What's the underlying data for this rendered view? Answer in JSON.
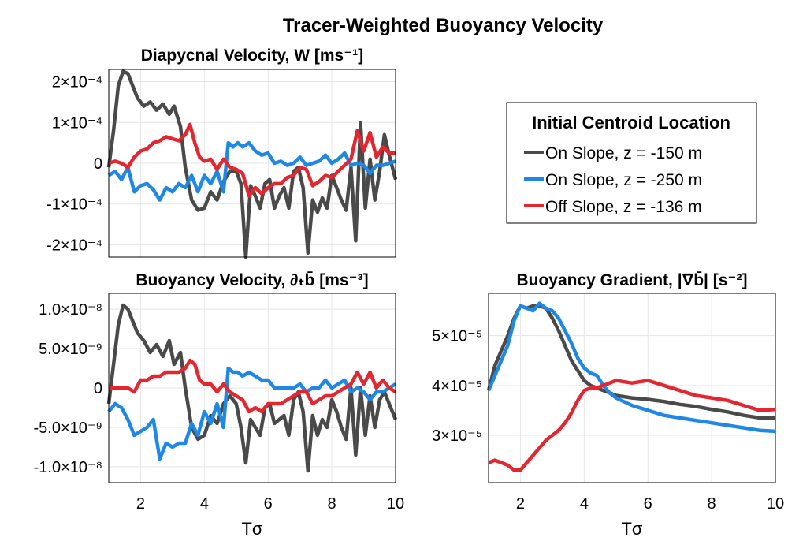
{
  "figure": {
    "title": "Tracer-Weighted Buoyancy Velocity"
  },
  "legend": {
    "title": "Initial Centroid Location",
    "entries": [
      {
        "label": "On Slope, z = -150 m",
        "color": "#4a4a4a"
      },
      {
        "label": "On Slope, z = -250 m",
        "color": "#1f88e5"
      },
      {
        "label": "Off Slope, z = -136 m",
        "color": "#e3262f"
      }
    ]
  },
  "chart_data": [
    {
      "type": "line",
      "title": "Diapycnal Velocity, W [ms⁻¹]",
      "xlabel": "",
      "ylabel": "",
      "xlim": [
        1,
        10
      ],
      "ylim": [
        -0.00023,
        0.00023
      ],
      "xticks": [],
      "yticks": [
        {
          "value": 0.0002,
          "label": "2×10⁻⁴"
        },
        {
          "value": 0.0001,
          "label": "1×10⁻⁴"
        },
        {
          "value": 0,
          "label": "0"
        },
        {
          "value": -0.0001,
          "label": "-1×10⁻⁴"
        },
        {
          "value": -0.0002,
          "label": "-2×10⁻⁴"
        }
      ],
      "grid": true,
      "series": [
        {
          "name": "On Slope, z = -150 m",
          "color": "#4a4a4a",
          "x": [
            1.0,
            1.15,
            1.3,
            1.45,
            1.6,
            1.75,
            1.9,
            2.1,
            2.3,
            2.5,
            2.7,
            2.9,
            3.05,
            3.25,
            3.4,
            3.6,
            3.8,
            4.0,
            4.2,
            4.4,
            4.6,
            4.8,
            5.0,
            5.15,
            5.3,
            5.45,
            5.6,
            5.75,
            5.9,
            6.05,
            6.2,
            6.35,
            6.5,
            6.65,
            6.8,
            6.95,
            7.1,
            7.25,
            7.4,
            7.55,
            7.7,
            7.85,
            8.0,
            8.15,
            8.3,
            8.45,
            8.6,
            8.75,
            8.9,
            9.05,
            9.2,
            9.35,
            9.5,
            9.65,
            9.8,
            10.0
          ],
          "y": [
            -1e-05,
            8e-05,
            0.00019,
            0.000225,
            0.00022,
            0.00019,
            0.00016,
            0.00014,
            0.00015,
            0.00013,
            0.000145,
            0.00012,
            0.00014,
            9e-05,
            -1e-05,
            -9e-05,
            -0.000115,
            -0.00011,
            -7e-05,
            -9e-05,
            -4.5e-05,
            -2e-05,
            -2e-05,
            -5e-05,
            -0.00023,
            -5.5e-05,
            -8e-05,
            -0.00011,
            -5e-05,
            -4e-05,
            -0.00011,
            -8e-05,
            -6e-05,
            -0.00011,
            -2e-05,
            -1e-05,
            -6e-05,
            -0.00022,
            -9e-05,
            -0.00012,
            -8.5e-05,
            -0.00011,
            -3e-05,
            -6e-05,
            -9e-05,
            -0.000115,
            -1e-05,
            -0.00019,
            0.0001,
            -0.00011,
            1e-05,
            -9e-05,
            -2e-05,
            7e-05,
            2e-05,
            -4e-05
          ]
        },
        {
          "name": "On Slope, z = -250 m",
          "color": "#1f88e5",
          "x": [
            1.0,
            1.2,
            1.4,
            1.6,
            1.8,
            2.0,
            2.2,
            2.4,
            2.6,
            2.8,
            3.0,
            3.2,
            3.4,
            3.6,
            3.8,
            4.0,
            4.2,
            4.4,
            4.6,
            4.75,
            4.9,
            5.05,
            5.2,
            5.4,
            5.6,
            5.8,
            6.0,
            6.2,
            6.4,
            6.6,
            6.8,
            7.0,
            7.2,
            7.4,
            7.6,
            7.8,
            8.0,
            8.2,
            8.4,
            8.6,
            8.8,
            9.0,
            9.2,
            9.4,
            9.6,
            9.8,
            10.0
          ],
          "y": [
            -3e-05,
            -2e-05,
            -4e-05,
            -1e-05,
            -7e-05,
            -5.5e-05,
            -5e-05,
            -6.5e-05,
            -9e-05,
            -6e-05,
            -7e-05,
            -5e-05,
            -6e-05,
            -3e-05,
            -7e-05,
            -3e-05,
            -5e-05,
            -2e-05,
            -7e-05,
            5e-05,
            4e-05,
            5e-05,
            4e-05,
            5e-05,
            3e-05,
            2e-05,
            2.5e-05,
            0.0,
            5e-06,
            -5e-06,
            0.0,
            1.5e-05,
            -5e-06,
            0.0,
            5e-06,
            2e-05,
            0.0,
            1e-05,
            2.5e-05,
            -5e-06,
            0.0,
            -5e-06,
            -2.5e-05,
            -5e-06,
            -5e-06,
            0.0,
            5e-06
          ]
        },
        {
          "name": "Off Slope, z = -136 m",
          "color": "#e3262f",
          "x": [
            1.0,
            1.2,
            1.4,
            1.6,
            1.8,
            2.0,
            2.2,
            2.4,
            2.6,
            2.8,
            3.0,
            3.2,
            3.4,
            3.55,
            3.7,
            3.85,
            4.0,
            4.2,
            4.4,
            4.6,
            4.8,
            5.0,
            5.2,
            5.4,
            5.6,
            5.8,
            6.0,
            6.2,
            6.4,
            6.6,
            6.8,
            7.0,
            7.2,
            7.4,
            7.6,
            7.8,
            8.0,
            8.2,
            8.4,
            8.6,
            8.8,
            9.0,
            9.2,
            9.4,
            9.6,
            9.8,
            10.0
          ],
          "y": [
            0.0,
            5e-06,
            0.0,
            -1e-05,
            1.5e-05,
            3e-05,
            3.5e-05,
            5e-05,
            5.5e-05,
            6.5e-05,
            6e-05,
            5.5e-05,
            7e-05,
            9.5e-05,
            5e-05,
            1.5e-05,
            5e-06,
            1e-05,
            -1.5e-05,
            1e-05,
            -1e-05,
            -1.5e-05,
            -2.5e-05,
            -8e-05,
            -6e-05,
            -7.5e-05,
            -6e-05,
            -5e-05,
            -5e-05,
            -3.5e-05,
            -3e-05,
            -1e-05,
            -1.5e-05,
            -5.5e-05,
            -4.5e-05,
            -3e-05,
            -3.5e-05,
            -2e-05,
            -5e-06,
            1e-05,
            8e-05,
            3e-05,
            7.5e-05,
            1.5e-05,
            4e-05,
            2.5e-05,
            2.5e-05
          ]
        }
      ]
    },
    {
      "type": "line",
      "title": "Buoyancy Velocity, ∂ₜb̄ [ms⁻³]",
      "xlabel": "Tσ",
      "ylabel": "",
      "xlim": [
        1,
        10
      ],
      "ylim": [
        -1.2e-08,
        1.2e-08
      ],
      "xticks": [
        {
          "value": 2,
          "label": "2"
        },
        {
          "value": 4,
          "label": "4"
        },
        {
          "value": 6,
          "label": "6"
        },
        {
          "value": 8,
          "label": "8"
        },
        {
          "value": 10,
          "label": "10"
        }
      ],
      "yticks": [
        {
          "value": 1e-08,
          "label": "1.0×10⁻⁸"
        },
        {
          "value": 5e-09,
          "label": "5.0×10⁻⁹"
        },
        {
          "value": 0,
          "label": "0"
        },
        {
          "value": -5e-09,
          "label": "-5.0×10⁻⁹"
        },
        {
          "value": -1e-08,
          "label": "-1.0×10⁻⁸"
        }
      ],
      "grid": true,
      "series": [
        {
          "name": "On Slope, z = -150 m",
          "color": "#4a4a4a",
          "x": [
            1.0,
            1.15,
            1.3,
            1.45,
            1.6,
            1.75,
            1.9,
            2.1,
            2.3,
            2.5,
            2.7,
            2.9,
            3.05,
            3.25,
            3.4,
            3.6,
            3.8,
            4.0,
            4.2,
            4.4,
            4.6,
            4.8,
            5.0,
            5.15,
            5.3,
            5.45,
            5.6,
            5.75,
            5.9,
            6.05,
            6.2,
            6.35,
            6.5,
            6.65,
            6.8,
            6.95,
            7.1,
            7.25,
            7.4,
            7.55,
            7.7,
            7.85,
            8.0,
            8.15,
            8.3,
            8.45,
            8.6,
            8.75,
            8.9,
            9.05,
            9.2,
            9.35,
            9.5,
            9.65,
            9.8,
            10.0
          ],
          "y": [
            -2e-09,
            3e-09,
            8e-09,
            1.05e-08,
            1e-08,
            8.5e-09,
            7e-09,
            6e-09,
            4.5e-09,
            5.5e-09,
            4e-09,
            6e-09,
            3e-09,
            4.5e-09,
            0.0,
            -5e-09,
            -6.5e-09,
            -6e-09,
            -3.5e-09,
            -4.5e-09,
            -2e-09,
            -1e-09,
            -2e-09,
            -5e-09,
            -9.5e-09,
            -4e-09,
            -5e-09,
            -6e-09,
            -2.5e-09,
            -2e-09,
            -4.5e-09,
            -4e-09,
            -3.5e-09,
            -6e-09,
            -1.5e-09,
            -5e-10,
            -3e-09,
            -1.05e-08,
            -3.5e-09,
            -6e-09,
            -4e-09,
            -5e-09,
            -1.5e-09,
            -3e-09,
            -5e-09,
            -6.5e-09,
            0.0,
            -8.5e-09,
            0.0,
            -6e-09,
            -1e-09,
            -5e-09,
            -1.5e-09,
            -5e-10,
            -2e-09,
            -4e-09
          ]
        },
        {
          "name": "On Slope, z = -250 m",
          "color": "#1f88e5",
          "x": [
            1.0,
            1.2,
            1.4,
            1.6,
            1.8,
            2.0,
            2.2,
            2.4,
            2.6,
            2.8,
            3.0,
            3.2,
            3.4,
            3.6,
            3.8,
            4.0,
            4.2,
            4.4,
            4.6,
            4.75,
            4.9,
            5.05,
            5.2,
            5.4,
            5.6,
            5.8,
            6.0,
            6.2,
            6.4,
            6.6,
            6.8,
            7.0,
            7.2,
            7.4,
            7.6,
            7.8,
            8.0,
            8.2,
            8.4,
            8.6,
            8.8,
            9.0,
            9.2,
            9.4,
            9.6,
            9.8,
            10.0
          ],
          "y": [
            -3e-09,
            -2e-09,
            -2.5e-09,
            -4e-09,
            -6e-09,
            -5.5e-09,
            -5e-09,
            -4e-09,
            -9e-09,
            -7e-09,
            -7.5e-09,
            -7e-09,
            -7e-09,
            -4.5e-09,
            -6e-09,
            -3e-09,
            -4.5e-09,
            -2e-09,
            -5e-09,
            2.5e-09,
            2e-09,
            2e-09,
            1.5e-09,
            2e-09,
            1.5e-09,
            1e-09,
            1e-09,
            0.0,
            0.0,
            0.0,
            0.0,
            5e-10,
            -5e-10,
            0.0,
            0.0,
            1e-09,
            0.0,
            5e-10,
            1e-09,
            -5e-10,
            0.0,
            -5e-10,
            -1.5e-09,
            -5e-10,
            -5e-10,
            0.0,
            5e-10
          ]
        },
        {
          "name": "Off Slope, z = -136 m",
          "color": "#e3262f",
          "x": [
            1.0,
            1.2,
            1.4,
            1.6,
            1.8,
            2.0,
            2.2,
            2.4,
            2.6,
            2.8,
            3.0,
            3.2,
            3.4,
            3.55,
            3.7,
            3.85,
            4.0,
            4.2,
            4.4,
            4.6,
            4.8,
            5.0,
            5.2,
            5.4,
            5.6,
            5.8,
            6.0,
            6.2,
            6.4,
            6.6,
            6.8,
            7.0,
            7.2,
            7.4,
            7.6,
            7.8,
            8.0,
            8.2,
            8.4,
            8.6,
            8.8,
            9.0,
            9.2,
            9.4,
            9.6,
            9.8,
            10.0
          ],
          "y": [
            0.0,
            0.0,
            0.0,
            0.0,
            -5e-10,
            1e-09,
            1e-09,
            1.5e-09,
            1.5e-09,
            2e-09,
            2e-09,
            2e-09,
            2.5e-09,
            3.5e-09,
            3e-09,
            1e-09,
            5e-10,
            5e-10,
            -5e-10,
            5e-10,
            -5e-10,
            -1e-09,
            -1.5e-09,
            -3e-09,
            -2.5e-09,
            -3e-09,
            -2e-09,
            -2e-09,
            -2e-09,
            -1.5e-09,
            -1e-09,
            -5e-10,
            -5e-10,
            -2e-09,
            -1.5e-09,
            -1e-09,
            -1e-09,
            -5e-10,
            0.0,
            5e-10,
            2e-09,
            5e-10,
            2e-09,
            0.0,
            1e-09,
            0.0,
            -5e-10
          ]
        }
      ]
    },
    {
      "type": "line",
      "title": "Buoyancy Gradient, |∇b̄| [s⁻²]",
      "xlabel": "Tσ",
      "ylabel": "",
      "xlim": [
        1,
        10
      ],
      "ylim": [
        2.05e-05,
        5.85e-05
      ],
      "xticks": [
        {
          "value": 2,
          "label": "2"
        },
        {
          "value": 4,
          "label": "4"
        },
        {
          "value": 6,
          "label": "6"
        },
        {
          "value": 8,
          "label": "8"
        },
        {
          "value": 10,
          "label": "10"
        }
      ],
      "yticks": [
        {
          "value": 5e-05,
          "label": "5×10⁻⁵"
        },
        {
          "value": 4e-05,
          "label": "4×10⁻⁵"
        },
        {
          "value": 3e-05,
          "label": "3×10⁻⁵"
        }
      ],
      "grid": true,
      "series": [
        {
          "name": "On Slope, z = -150 m",
          "color": "#4a4a4a",
          "x": [
            1.0,
            1.2,
            1.4,
            1.6,
            1.8,
            2.0,
            2.2,
            2.4,
            2.6,
            2.8,
            3.0,
            3.2,
            3.4,
            3.6,
            3.8,
            4.0,
            4.2,
            4.4,
            4.6,
            4.8,
            5.0,
            5.5,
            6.0,
            6.5,
            7.0,
            7.5,
            8.0,
            8.5,
            9.0,
            9.5,
            10.0
          ],
          "y": [
            3.9e-05,
            4.4e-05,
            4.7e-05,
            5e-05,
            5.35e-05,
            5.6e-05,
            5.55e-05,
            5.6e-05,
            5.6e-05,
            5.55e-05,
            5.35e-05,
            5.1e-05,
            4.8e-05,
            4.5e-05,
            4.3e-05,
            4.1e-05,
            4e-05,
            3.95e-05,
            3.9e-05,
            3.85e-05,
            3.8e-05,
            3.75e-05,
            3.72e-05,
            3.68e-05,
            3.62e-05,
            3.58e-05,
            3.52e-05,
            3.47e-05,
            3.4e-05,
            3.35e-05,
            3.35e-05
          ]
        },
        {
          "name": "On Slope, z = -250 m",
          "color": "#1f88e5",
          "x": [
            1.0,
            1.2,
            1.4,
            1.6,
            1.8,
            2.0,
            2.2,
            2.4,
            2.6,
            2.8,
            3.0,
            3.2,
            3.4,
            3.6,
            3.8,
            4.0,
            4.2,
            4.4,
            4.6,
            4.8,
            5.0,
            5.5,
            6.0,
            6.5,
            7.0,
            7.5,
            8.0,
            8.5,
            9.0,
            9.5,
            10.0
          ],
          "y": [
            3.9e-05,
            4.2e-05,
            4.5e-05,
            4.8e-05,
            5.3e-05,
            5.6e-05,
            5.55e-05,
            5.5e-05,
            5.65e-05,
            5.55e-05,
            5.5e-05,
            5.35e-05,
            5.1e-05,
            4.85e-05,
            4.55e-05,
            4.35e-05,
            4.25e-05,
            4.2e-05,
            4e-05,
            3.85e-05,
            3.75e-05,
            3.6e-05,
            3.5e-05,
            3.4e-05,
            3.35e-05,
            3.3e-05,
            3.25e-05,
            3.2e-05,
            3.15e-05,
            3.1e-05,
            3.08e-05
          ]
        },
        {
          "name": "Off Slope, z = -136 m",
          "color": "#e3262f",
          "x": [
            1.0,
            1.2,
            1.4,
            1.6,
            1.8,
            2.0,
            2.2,
            2.4,
            2.6,
            2.8,
            3.0,
            3.2,
            3.4,
            3.6,
            3.8,
            4.0,
            4.2,
            4.4,
            4.6,
            4.8,
            5.0,
            5.5,
            6.0,
            6.5,
            7.0,
            7.5,
            8.0,
            8.5,
            9.0,
            9.5,
            10.0
          ],
          "y": [
            2.45e-05,
            2.5e-05,
            2.45e-05,
            2.4e-05,
            2.3e-05,
            2.3e-05,
            2.45e-05,
            2.6e-05,
            2.75e-05,
            2.9e-05,
            3e-05,
            3.1e-05,
            3.25e-05,
            3.45e-05,
            3.7e-05,
            3.9e-05,
            3.95e-05,
            3.95e-05,
            4e-05,
            4.05e-05,
            4.1e-05,
            4.05e-05,
            4.1e-05,
            4e-05,
            3.9e-05,
            3.8e-05,
            3.75e-05,
            3.7e-05,
            3.6e-05,
            3.5e-05,
            3.52e-05
          ]
        }
      ]
    }
  ]
}
